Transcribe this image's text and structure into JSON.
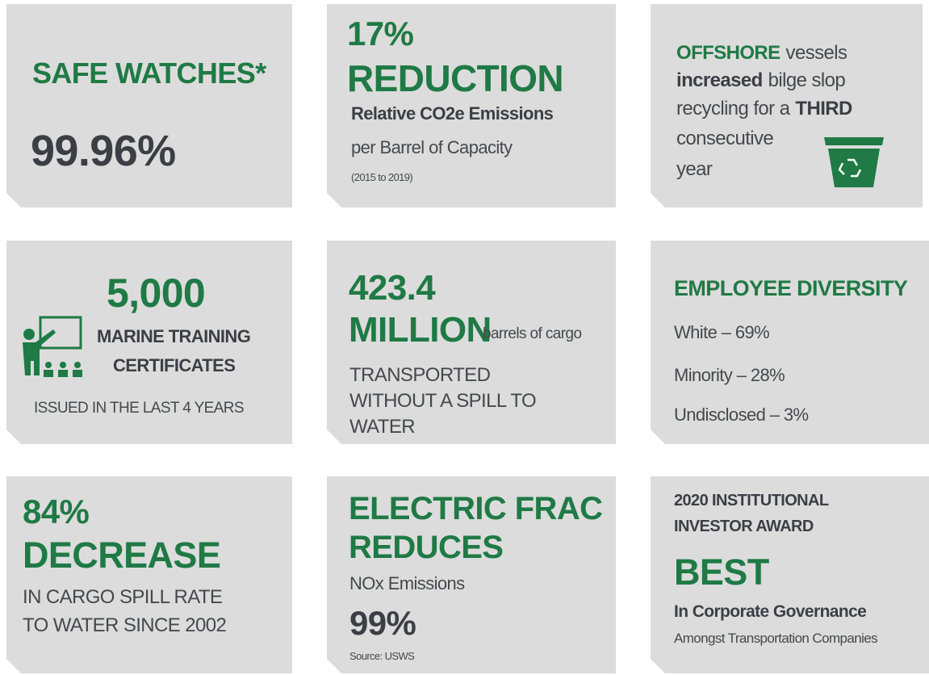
{
  "tiles": [
    {
      "title": "SAFE WATCHES*",
      "value": "99.96%"
    },
    {
      "value": "17%",
      "headline": "REDUCTION",
      "subtitle": "Relative CO2e Emissions",
      "text": "per Barrel of Capacity",
      "note": "(2015 to 2019)"
    },
    {
      "lines": [
        [
          "OFFSHORE",
          "vessels"
        ],
        [
          "increased",
          "bilge slop"
        ],
        [
          "recycling for a",
          "THIRD"
        ],
        [
          "consecutive"
        ],
        [
          "year"
        ]
      ]
    },
    {
      "value": "5,000",
      "lines": [
        "MARINE TRAINING",
        "CERTIFICATES"
      ],
      "text": "ISSUED IN THE LAST 4 YEARS"
    },
    {
      "value": "423.4",
      "headline": "MILLION",
      "unit": "barrels of cargo",
      "lines": [
        "TRANSPORTED",
        "WITHOUT A SPILL TO",
        "WATER"
      ]
    },
    {
      "title": "EMPLOYEE DIVERSITY",
      "items": [
        "White – 69%",
        "Minority – 28%",
        "Undisclosed – 3%"
      ]
    },
    {
      "value": "84%",
      "headline": "DECREASE",
      "lines": [
        "IN CARGO SPILL RATE",
        "TO WATER SINCE 2002"
      ]
    },
    {
      "lines": [
        "ELECTRIC FRAC",
        "REDUCES"
      ],
      "text": "NOx Emissions",
      "value": "99%",
      "note": "Source: USWS"
    },
    {
      "lines": [
        "2020 INSTITUTIONAL",
        "INVESTOR AWARD"
      ],
      "headline": "BEST",
      "subtitle": "In Corporate Governance",
      "text": "Amongst Transportation Companies"
    }
  ]
}
